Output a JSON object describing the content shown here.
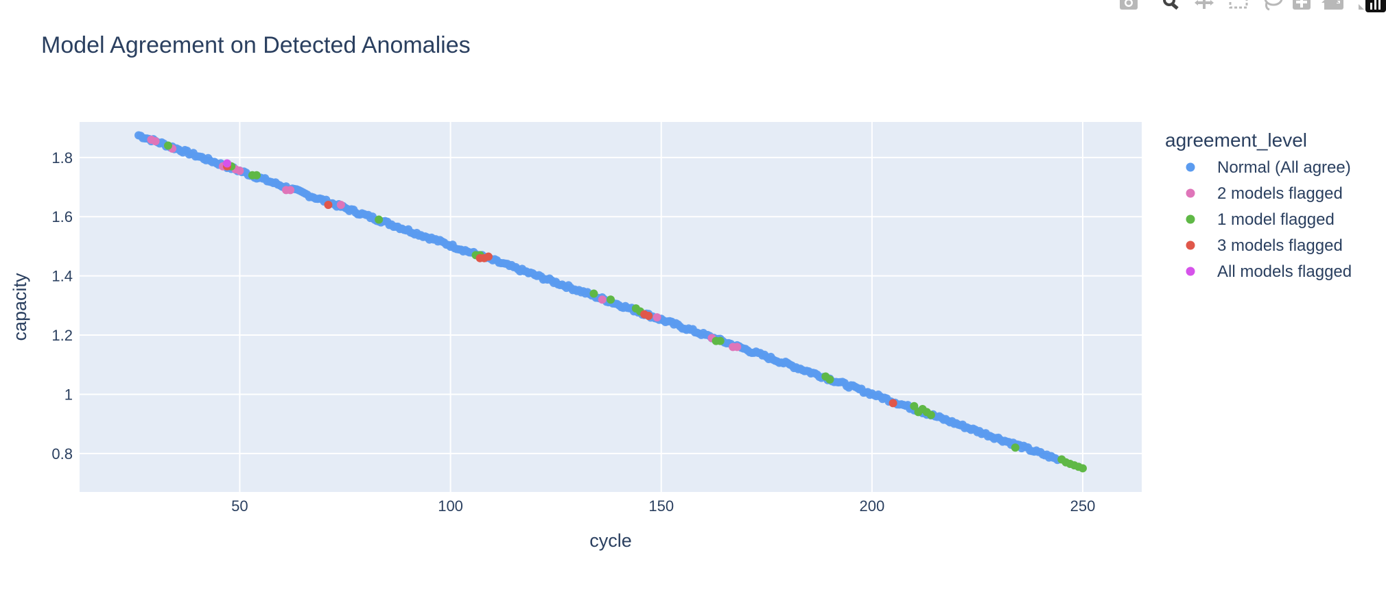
{
  "modebar": {
    "icons": [
      "camera-icon",
      "zoom-icon",
      "pan-icon",
      "box-select-icon",
      "lasso-select-icon",
      "zoom-in-icon",
      "zoom-out-icon",
      "autoscale-icon",
      "reset-axes-icon",
      "plotly-logo-icon"
    ],
    "color": "#b8b8b8"
  },
  "chart_data": {
    "type": "scatter",
    "title": "Model Agreement on Detected Anomalies",
    "xlabel": "cycle",
    "ylabel": "capacity",
    "xlim": [
      12,
      264
    ],
    "ylim": [
      0.67,
      1.92
    ],
    "xticks": [
      50,
      100,
      150,
      200,
      250
    ],
    "yticks": [
      0.8,
      1,
      1.2,
      1.4,
      1.6,
      1.8
    ],
    "ytick_labels": [
      "0.8",
      "1",
      "1.2",
      "1.4",
      "1.6",
      "1.8"
    ],
    "grid": true,
    "plot_bg": "#e5ecf6",
    "legend": {
      "title": "agreement_level",
      "placement": "right"
    },
    "trend": {
      "x_start": 26,
      "y_start": 1.875,
      "x_end": 250,
      "y_end": 0.75
    },
    "series": [
      {
        "name": "Normal (All agree)",
        "color": "#5b9bef",
        "x_range": [
          26,
          244
        ],
        "noise": 0.006
      },
      {
        "name": "2 models flagged",
        "color": "#df75b9",
        "points": [
          [
            29,
            1.86
          ],
          [
            30,
            1.855
          ],
          [
            34,
            1.83
          ],
          [
            46,
            1.77
          ],
          [
            47,
            1.775
          ],
          [
            49,
            1.76
          ],
          [
            50,
            1.755
          ],
          [
            61,
            1.69
          ],
          [
            62,
            1.69
          ],
          [
            74,
            1.64
          ],
          [
            136,
            1.32
          ],
          [
            149,
            1.26
          ],
          [
            162,
            1.19
          ],
          [
            167,
            1.16
          ],
          [
            168,
            1.16
          ]
        ]
      },
      {
        "name": "1 model flagged",
        "color": "#5fb846",
        "points": [
          [
            33,
            1.84
          ],
          [
            48,
            1.77
          ],
          [
            53,
            1.74
          ],
          [
            54,
            1.74
          ],
          [
            83,
            1.59
          ],
          [
            106,
            1.47
          ],
          [
            107,
            1.47
          ],
          [
            134,
            1.34
          ],
          [
            138,
            1.32
          ],
          [
            144,
            1.29
          ],
          [
            145,
            1.28
          ],
          [
            163,
            1.18
          ],
          [
            164,
            1.18
          ],
          [
            189,
            1.06
          ],
          [
            190,
            1.05
          ],
          [
            210,
            0.96
          ],
          [
            211,
            0.94
          ],
          [
            212,
            0.95
          ],
          [
            213,
            0.94
          ],
          [
            214,
            0.93
          ],
          [
            234,
            0.82
          ],
          [
            245,
            0.78
          ],
          [
            246,
            0.77
          ],
          [
            247,
            0.765
          ],
          [
            248,
            0.76
          ],
          [
            249,
            0.755
          ],
          [
            250,
            0.75
          ]
        ]
      },
      {
        "name": "3 models flagged",
        "color": "#e0574a",
        "points": [
          [
            47,
            1.77
          ],
          [
            71,
            1.64
          ],
          [
            107,
            1.46
          ],
          [
            108,
            1.46
          ],
          [
            109,
            1.465
          ],
          [
            146,
            1.27
          ],
          [
            147,
            1.265
          ],
          [
            205,
            0.97
          ]
        ]
      },
      {
        "name": "All models flagged",
        "color": "#d653ea",
        "points": [
          [
            47,
            1.78
          ]
        ]
      }
    ]
  }
}
